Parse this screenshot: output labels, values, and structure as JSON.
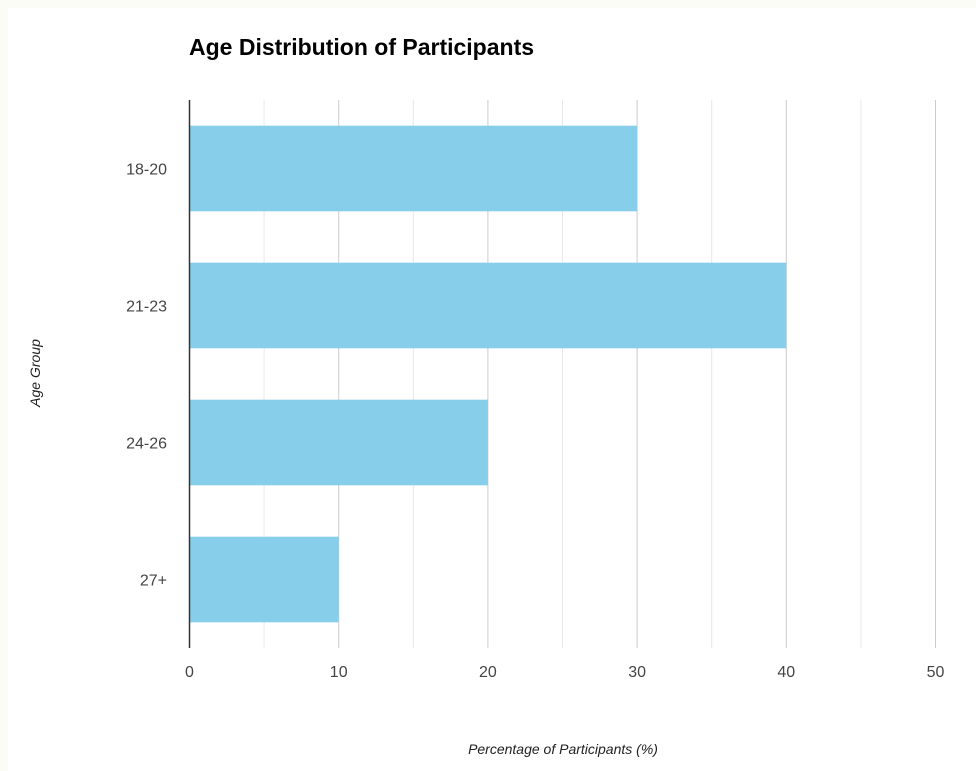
{
  "chart_data": {
    "type": "bar",
    "orientation": "horizontal",
    "title": "Age Distribution of Participants",
    "xlabel": "Percentage of Participants (%)",
    "ylabel": "Age Group",
    "categories": [
      "18-20",
      "21-23",
      "24-26",
      "27+"
    ],
    "values": [
      30,
      40,
      20,
      10
    ],
    "xlim": [
      0,
      50
    ],
    "x_ticks": [
      0,
      10,
      20,
      30,
      40,
      50
    ],
    "x_tick_labels": [
      "0",
      "10",
      "20",
      "30",
      "40",
      "50"
    ],
    "minor_gridlines": true,
    "grid": true,
    "legend": "none",
    "colors": {
      "bar": "#87ceeb",
      "major_grid": "#cccccc",
      "minor_grid": "#e8e8e8",
      "axis": "#333333"
    }
  }
}
